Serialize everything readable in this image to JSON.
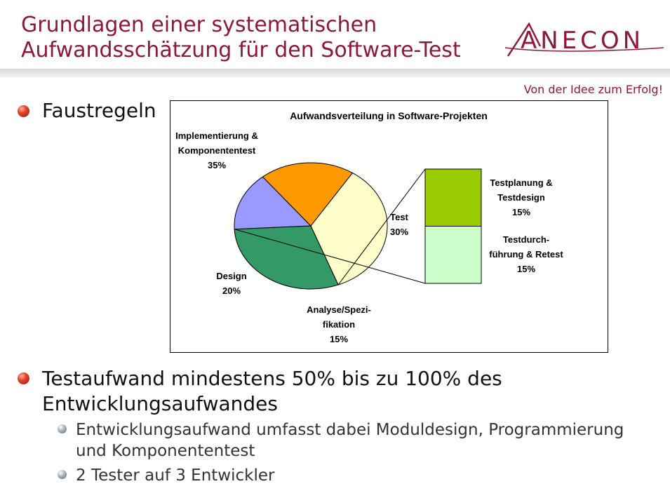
{
  "title": {
    "line1": "Grundlagen einer systematischen",
    "line2": "Aufwandsschätzung für den Software-Test"
  },
  "logo": {
    "text": "ANECON",
    "color": "#8b1a3a"
  },
  "slogan": "Von der Idee zum Erfolg!",
  "bullets": {
    "b1": "Faustregeln",
    "b2_line1": "Testaufwand mindestens 50% bis zu 100% des",
    "b2_line2": "Entwicklungsaufwandes",
    "sub1_line1": "Entwicklungsaufwand umfasst dabei Moduldesign, Programmierung",
    "sub1_line2": "und Komponententest",
    "sub2": "2 Tester auf 3 Entwickler"
  },
  "chart_data": {
    "type": "pie",
    "title": "Aufwandsverteilung in Software-Projekten",
    "slices": [
      {
        "label_lines": [
          "Implementierung &",
          "Komponententest"
        ],
        "pct_label": "35%",
        "value": 35,
        "color": "#ffffcc"
      },
      {
        "label_lines": [
          "Test"
        ],
        "pct_label": "30%",
        "value": 30,
        "color": "#339966"
      },
      {
        "label_lines": [
          "Analyse/Spezi-",
          "fikation"
        ],
        "pct_label": "15%",
        "value": 15,
        "color": "#9999ff"
      },
      {
        "label_lines": [
          "Design"
        ],
        "pct_label": "20%",
        "value": 20,
        "color": "#ff9900"
      }
    ],
    "breakdown_of": "Test",
    "breakdown": [
      {
        "label_lines": [
          "Testplanung &",
          "Testdesign"
        ],
        "pct_label": "15%",
        "value": 15,
        "color": "#99cc00"
      },
      {
        "label_lines": [
          "Testdurch-",
          "führung & Retest"
        ],
        "pct_label": "15%",
        "value": 15,
        "color": "#ccffcc"
      }
    ]
  }
}
